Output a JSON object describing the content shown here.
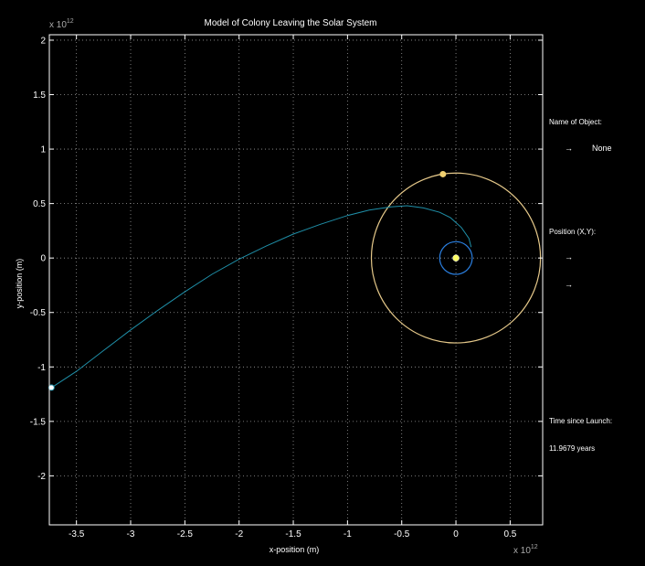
{
  "chart_data": {
    "type": "line",
    "title": "Model of Colony Leaving the Solar System",
    "xlabel": "x-position (m)",
    "ylabel": "y-position (m)",
    "x_exponent_label": "x 10",
    "x_exponent": "12",
    "y_exponent_label": "x 10",
    "y_exponent": "12",
    "xlim": [
      -3.75,
      0.8
    ],
    "ylim": [
      -2.45,
      2.05
    ],
    "xticks": [
      -3.5,
      -3,
      -2.5,
      -2,
      -1.5,
      -1,
      -0.5,
      0,
      0.5
    ],
    "xtick_labels": [
      "-3.5",
      "-3",
      "-2.5",
      "-2",
      "-1.5",
      "-1",
      "-0.5",
      "0",
      "0.5"
    ],
    "yticks": [
      2,
      1.5,
      1,
      0.5,
      0,
      -0.5,
      -1,
      -1.5,
      -2
    ],
    "ytick_labels": [
      "2",
      "1.5",
      "1",
      "0.5",
      "0",
      "-0.5",
      "-1",
      "-1.5",
      "-2"
    ],
    "grid": true,
    "colors": {
      "background": "#000000",
      "axes": "#ffffff",
      "grid": "#9a9a9a",
      "trajectory": "#1f8fa8",
      "outer_orbit": "#e6c98a",
      "inner_orbit": "#2a7fe0",
      "sun": "#ffff66",
      "planet": "#f0d070",
      "colony": "#ffffff"
    },
    "orbits": [
      {
        "name": "outer",
        "radius": 0.78,
        "center": [
          0,
          0
        ]
      },
      {
        "name": "inner",
        "radius": 0.15,
        "center": [
          0,
          0
        ]
      }
    ],
    "sun": {
      "x": 0,
      "y": 0
    },
    "planet": {
      "x": -0.12,
      "y": 0.77
    },
    "colony": {
      "x": -3.73,
      "y": -1.19
    },
    "trajectory": {
      "x": [
        0.14,
        0.12,
        0.05,
        -0.05,
        -0.15,
        -0.3,
        -0.45,
        -0.6,
        -0.8,
        -1.0,
        -1.25,
        -1.5,
        -1.75,
        -2.0,
        -2.25,
        -2.5,
        -2.75,
        -3.0,
        -3.25,
        -3.5,
        -3.73
      ],
      "y": [
        0.1,
        0.18,
        0.28,
        0.37,
        0.42,
        0.46,
        0.48,
        0.47,
        0.44,
        0.39,
        0.31,
        0.22,
        0.11,
        -0.01,
        -0.15,
        -0.31,
        -0.48,
        -0.66,
        -0.85,
        -1.04,
        -1.19
      ]
    }
  },
  "sidebar": {
    "name_label": "Name of Object:",
    "name_arrow": "→",
    "name_value": "None",
    "position_label": "Position (X,Y):",
    "position_arrow_x": "→",
    "position_arrow_y": "→",
    "time_label": "Time since Launch:",
    "time_value": "11.9679  years"
  }
}
